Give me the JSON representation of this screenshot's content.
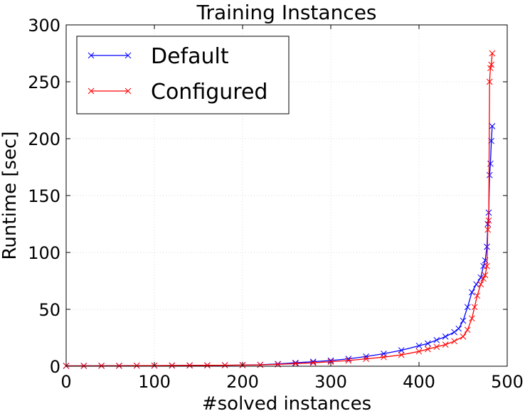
{
  "chart_data": {
    "type": "line",
    "title": "Training Instances",
    "xlabel": "#solved instances",
    "ylabel": "Runtime [sec]",
    "xlim": [
      0,
      500
    ],
    "ylim": [
      0,
      300
    ],
    "xticks": [
      0,
      100,
      200,
      300,
      400,
      500
    ],
    "yticks": [
      0,
      50,
      100,
      150,
      200,
      250,
      300
    ],
    "grid": true,
    "legend_position": "top-left",
    "series": [
      {
        "name": "Default",
        "color": "#0000ff",
        "marker": "x",
        "x": [
          0,
          20,
          40,
          60,
          80,
          100,
          120,
          140,
          160,
          180,
          200,
          220,
          240,
          260,
          280,
          300,
          320,
          340,
          360,
          380,
          400,
          410,
          420,
          430,
          440,
          445,
          450,
          455,
          460,
          465,
          470,
          473,
          475,
          477,
          478,
          479,
          480,
          481,
          482,
          483
        ],
        "y": [
          0.3,
          0.3,
          0.4,
          0.4,
          0.5,
          0.5,
          0.6,
          0.7,
          0.8,
          0.9,
          1.0,
          1.3,
          2.0,
          3.0,
          4.0,
          5.0,
          6.5,
          8.5,
          11.0,
          14.0,
          18.0,
          20.0,
          23.0,
          26.0,
          30.0,
          33.0,
          40.0,
          52.0,
          65.0,
          72.0,
          78.0,
          88.0,
          93.0,
          105.0,
          125.0,
          135.0,
          168.0,
          178.0,
          198.0,
          211.0
        ]
      },
      {
        "name": "Configured",
        "color": "#ff0000",
        "marker": "x",
        "x": [
          0,
          20,
          40,
          60,
          80,
          100,
          120,
          140,
          160,
          180,
          200,
          220,
          240,
          260,
          280,
          300,
          320,
          340,
          360,
          380,
          400,
          410,
          420,
          430,
          440,
          450,
          455,
          460,
          463,
          466,
          470,
          473,
          475,
          477,
          478,
          479,
          480,
          481,
          482,
          483
        ],
        "y": [
          0.3,
          0.3,
          0.4,
          0.4,
          0.5,
          0.5,
          0.6,
          0.7,
          0.8,
          0.9,
          1.0,
          1.2,
          1.6,
          2.3,
          3.0,
          4.0,
          5.0,
          6.5,
          8.0,
          10.0,
          13.0,
          15.0,
          17.0,
          19.0,
          22.0,
          26.0,
          32.0,
          42.0,
          52.0,
          62.0,
          72.0,
          77.0,
          80.0,
          88.0,
          120.0,
          128.0,
          250.0,
          262.0,
          265.0,
          275.0
        ]
      }
    ]
  }
}
